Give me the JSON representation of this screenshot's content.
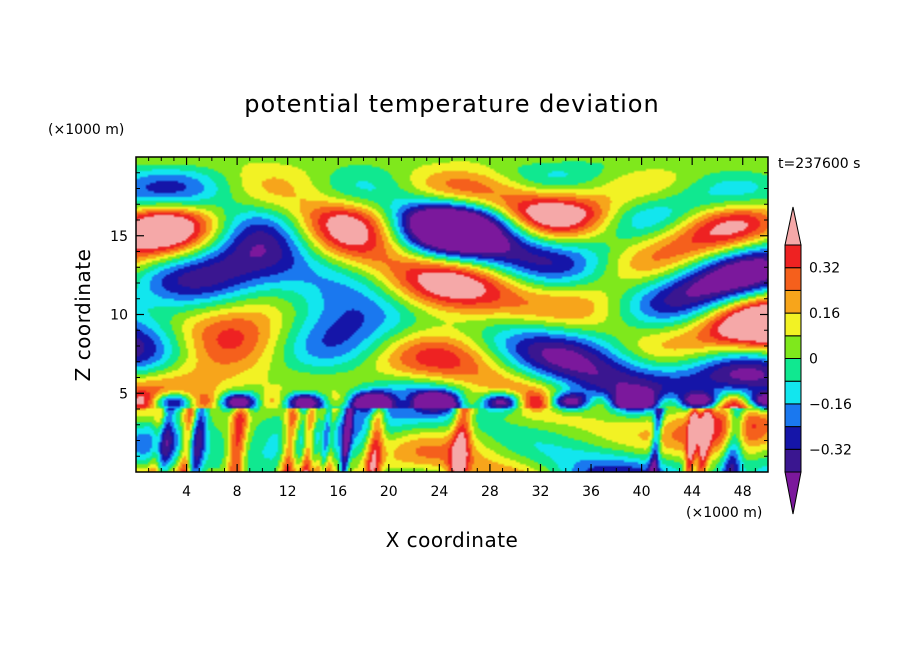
{
  "chart_data": {
    "type": "heatmap",
    "title": "potential temperature deviation",
    "xlabel": "X coordinate",
    "ylabel": "Z coordinate",
    "x_unit": "(×1000 m)",
    "y_unit": "(×1000 m)",
    "time_label": "t=237600 s",
    "xlim": [
      0,
      50
    ],
    "ylim": [
      0,
      20
    ],
    "x_ticks": [
      4,
      8,
      12,
      16,
      20,
      24,
      28,
      32,
      36,
      40,
      44,
      48
    ],
    "y_ticks": [
      5,
      10,
      15
    ],
    "colorbar": {
      "levels": [
        -0.4,
        -0.32,
        -0.24,
        -0.16,
        -0.08,
        0,
        0.08,
        0.16,
        0.24,
        0.32,
        0.4
      ],
      "labeled_ticks": [
        0.32,
        0.16,
        0,
        -0.16,
        -0.32
      ],
      "tick_labels": [
        "0.32",
        "0.16",
        "0",
        "−0.16",
        "−0.32"
      ],
      "colors": [
        "#7b189c",
        "#3a1690",
        "#1515a8",
        "#1a78ef",
        "#12e6ee",
        "#10e890",
        "#7fe81c",
        "#f2f224",
        "#f7a51b",
        "#f5601c",
        "#ee2222",
        "#f5a8a8"
      ]
    }
  }
}
